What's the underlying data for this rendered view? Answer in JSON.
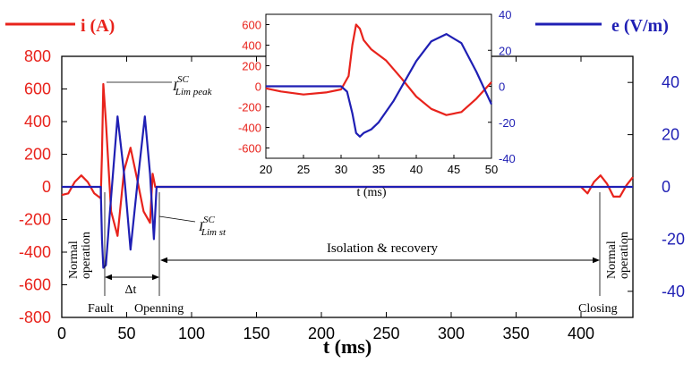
{
  "chart_data": {
    "type": "line",
    "xlabel": "t (ms)",
    "xlim": [
      0,
      440
    ],
    "x_ticks": [
      0,
      50,
      100,
      150,
      200,
      250,
      300,
      350,
      400
    ],
    "y_left": {
      "label": "i (A)",
      "lim": [
        -800,
        800
      ],
      "ticks": [
        800,
        600,
        400,
        200,
        0,
        -200,
        -400,
        -600,
        -800
      ],
      "color": "#e8231c"
    },
    "y_right": {
      "label": "e (V/m)",
      "lim": [
        -50,
        50
      ],
      "ticks": [
        40,
        20,
        0,
        -20,
        -40
      ],
      "color": "#1f1fb4"
    },
    "series": [
      {
        "name": "i (A)",
        "color": "#e8231c",
        "axis": "left",
        "x": [
          0,
          5,
          10,
          15,
          20,
          25,
          30,
          31,
          32,
          34,
          38,
          43,
          48,
          53,
          58,
          63,
          68,
          70,
          72,
          100,
          200,
          300,
          400,
          405,
          410,
          415,
          420,
          425,
          430,
          435,
          440
        ],
        "y": [
          -50,
          -40,
          30,
          70,
          30,
          -40,
          -70,
          200,
          630,
          400,
          -150,
          -300,
          100,
          240,
          50,
          -150,
          -220,
          80,
          0,
          0,
          0,
          0,
          0,
          -40,
          30,
          70,
          20,
          -60,
          -60,
          10,
          60
        ]
      },
      {
        "name": "e (V/m)",
        "color": "#1f1fb4",
        "axis": "right",
        "x": [
          0,
          10,
          20,
          30,
          31,
          32,
          34,
          37,
          43,
          48,
          53,
          58,
          64,
          68,
          71,
          73,
          100,
          200,
          300,
          400,
          440
        ],
        "y": [
          0,
          0,
          0,
          0,
          -20,
          -31,
          -30,
          -10,
          27,
          5,
          -24,
          0,
          27,
          5,
          -20,
          0,
          0,
          0,
          0,
          0,
          0
        ]
      }
    ],
    "inset": {
      "xlabel": "t (ms)",
      "xlim": [
        20,
        50
      ],
      "x_ticks": [
        20,
        25,
        30,
        35,
        40,
        45,
        50
      ],
      "left_lim": [
        -700,
        700
      ],
      "left_ticks": [
        600,
        400,
        200,
        0,
        -200,
        -400,
        -600
      ],
      "right_lim": [
        -40,
        40
      ],
      "right_ticks": [
        40,
        20,
        0,
        -20,
        -40
      ],
      "series": [
        {
          "name": "i (A)",
          "color": "#e8231c",
          "axis": "left",
          "x": [
            20,
            22,
            25,
            28,
            30,
            31,
            31.5,
            32,
            32.5,
            33,
            34,
            36,
            38,
            40,
            42,
            44,
            46,
            48,
            50
          ],
          "y": [
            -20,
            -50,
            -80,
            -60,
            -30,
            100,
            400,
            600,
            560,
            450,
            360,
            250,
            80,
            -100,
            -220,
            -280,
            -250,
            -120,
            40
          ]
        },
        {
          "name": "e (V/m)",
          "color": "#1f1fb4",
          "axis": "right",
          "x": [
            20,
            25,
            30,
            30.8,
            31.5,
            32,
            32.5,
            33,
            34,
            35,
            37,
            40,
            42,
            44,
            46,
            48,
            50
          ],
          "y": [
            0,
            0,
            0,
            -3,
            -15,
            -26,
            -28,
            -26,
            -24,
            -20,
            -8,
            14,
            25,
            29,
            24,
            8,
            -10
          ]
        }
      ]
    },
    "annotations": {
      "i_peak": {
        "main": "I",
        "sup": "SC",
        "sub": "Lim peak"
      },
      "i_st": {
        "main": "I",
        "sup": "SC",
        "sub": "Lim st"
      },
      "normal_operation": "Normal operation",
      "fault": "Fault",
      "delta_t": "Δt",
      "opening": "Openning",
      "isolation": "Isolation & recovery",
      "closing": "Closing"
    }
  }
}
